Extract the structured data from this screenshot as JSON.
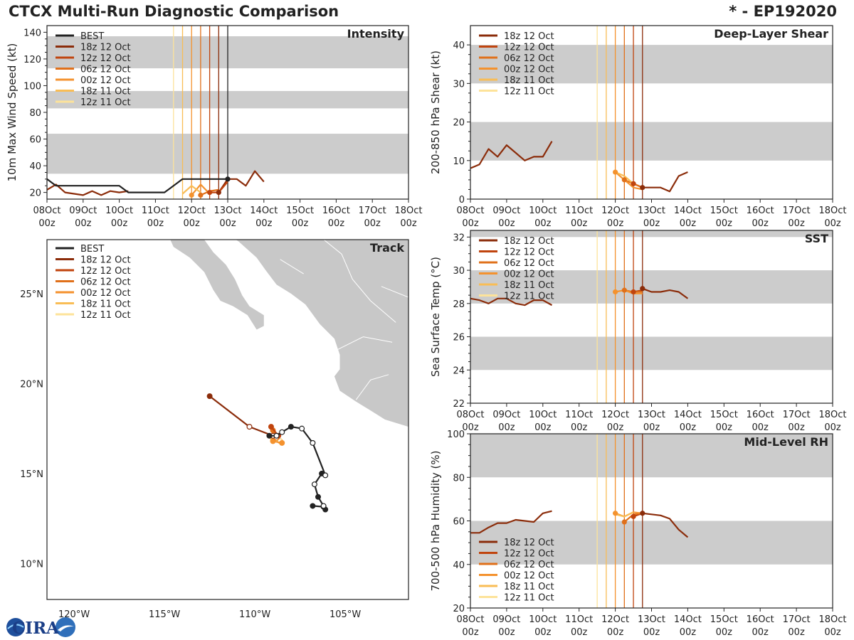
{
  "header": {
    "title": "CTCX Multi-Run Diagnostic Comparison",
    "storm": "* - EP192020"
  },
  "logo": {
    "text": "CIRA"
  },
  "colors": {
    "BEST": "#222222",
    "18z 12 Oct": "#8b2c0a",
    "12z 12 Oct": "#c0440e",
    "06z 12 Oct": "#e0701a",
    "00z 12 Oct": "#f4922e",
    "18z 11 Oct": "#f9bd55",
    "12z 11 Oct": "#fde39a",
    "band": "#cccccc",
    "land": "#c8c8c8"
  },
  "time_axis": {
    "ticks": [
      {
        "day": "08Oct",
        "hour": "00z"
      },
      {
        "day": "09Oct",
        "hour": "00z"
      },
      {
        "day": "10Oct",
        "hour": "00z"
      },
      {
        "day": "11Oct",
        "hour": "00z"
      },
      {
        "day": "12Oct",
        "hour": "00z"
      },
      {
        "day": "13Oct",
        "hour": "00z"
      },
      {
        "day": "14Oct",
        "hour": "00z"
      },
      {
        "day": "15Oct",
        "hour": "00z"
      },
      {
        "day": "16Oct",
        "hour": "00z"
      },
      {
        "day": "17Oct",
        "hour": "00z"
      },
      {
        "day": "18Oct",
        "hour": "00z"
      }
    ],
    "unit": "days since 08Oct 00z"
  },
  "chart_data": [
    {
      "id": "intensity",
      "type": "line",
      "title": "Intensity",
      "ylabel": "10m Max Wind Speed (kt)",
      "xlim": [
        0,
        10
      ],
      "ylim": [
        15,
        145
      ],
      "yticks": [
        20,
        40,
        60,
        80,
        100,
        120,
        140
      ],
      "bands": [
        [
          34,
          64
        ],
        [
          83,
          96
        ],
        [
          113,
          137
        ]
      ],
      "legend": [
        "BEST",
        "18z 12 Oct",
        "12z 12 Oct",
        "06z 12 Oct",
        "00z 12 Oct",
        "18z 11 Oct",
        "12z 11 Oct"
      ],
      "init_lines": [
        {
          "name": "12z 11 Oct",
          "x": 3.5
        },
        {
          "name": "18z 11 Oct",
          "x": 3.75
        },
        {
          "name": "00z 12 Oct",
          "x": 4.0
        },
        {
          "name": "06z 12 Oct",
          "x": 4.25
        },
        {
          "name": "12z 12 Oct",
          "x": 4.5
        },
        {
          "name": "18z 12 Oct",
          "x": 4.75
        },
        {
          "name": "BEST",
          "x": 5.0
        }
      ],
      "series": [
        {
          "name": "18z 12 Oct",
          "x": [
            0,
            0.25,
            0.5,
            0.75,
            1.0,
            1.25,
            1.5,
            1.75,
            2.0,
            2.25
          ],
          "values": [
            22,
            26,
            20,
            19,
            18,
            21,
            18,
            21,
            20,
            21
          ]
        },
        {
          "name": "18z 12 Oct",
          "x": [
            4.75,
            5.0,
            5.25,
            5.5,
            5.75,
            6.0
          ],
          "values": [
            20,
            30,
            30,
            25,
            36,
            28
          ]
        },
        {
          "name": "12z 12 Oct",
          "x": [
            4.5,
            4.75,
            5.0
          ],
          "values": [
            20,
            20,
            28
          ]
        },
        {
          "name": "06z 12 Oct",
          "x": [
            4.25,
            4.5,
            4.75
          ],
          "values": [
            18,
            21,
            22
          ]
        },
        {
          "name": "00z 12 Oct",
          "x": [
            4.0,
            4.25,
            4.5
          ],
          "values": [
            18,
            26,
            19
          ]
        },
        {
          "name": "18z 11 Oct",
          "x": [
            3.75,
            4.0,
            4.25
          ],
          "values": [
            19,
            25,
            20
          ]
        },
        {
          "name": "BEST",
          "x": [
            0,
            0.25,
            0.5,
            0.75,
            1.0,
            1.25,
            1.5,
            1.75,
            2.0,
            2.25,
            2.5,
            2.75,
            3.0,
            3.25,
            3.5,
            3.75,
            4.0,
            4.25,
            4.5,
            4.75,
            5.0
          ],
          "values": [
            30,
            25,
            25,
            25,
            25,
            25,
            25,
            25,
            25,
            20,
            20,
            20,
            20,
            20,
            25,
            30,
            30,
            30,
            30,
            30,
            30
          ]
        }
      ],
      "markers": [
        {
          "name": "BEST",
          "x": 5.0,
          "y": 30
        },
        {
          "name": "18z 12 Oct",
          "x": 4.75,
          "y": 20
        },
        {
          "name": "12z 12 Oct",
          "x": 4.5,
          "y": 20
        },
        {
          "name": "06z 12 Oct",
          "x": 4.25,
          "y": 18
        },
        {
          "name": "00z 12 Oct",
          "x": 4.0,
          "y": 18
        }
      ]
    },
    {
      "id": "shear",
      "type": "line",
      "title": "Deep-Layer Shear",
      "ylabel": "200-850 hPa Shear (kt)",
      "xlim": [
        0,
        10
      ],
      "ylim": [
        0,
        45
      ],
      "yticks": [
        0,
        10,
        20,
        30,
        40
      ],
      "bands": [
        [
          10,
          20
        ],
        [
          30,
          40
        ]
      ],
      "legend": [
        "18z 12 Oct",
        "12z 12 Oct",
        "06z 12 Oct",
        "00z 12 Oct",
        "18z 11 Oct",
        "12z 11 Oct"
      ],
      "init_lines": [
        {
          "name": "12z 11 Oct",
          "x": 3.5
        },
        {
          "name": "18z 11 Oct",
          "x": 3.75
        },
        {
          "name": "00z 12 Oct",
          "x": 4.0
        },
        {
          "name": "06z 12 Oct",
          "x": 4.25
        },
        {
          "name": "12z 12 Oct",
          "x": 4.5
        },
        {
          "name": "18z 12 Oct",
          "x": 4.75
        }
      ],
      "series": [
        {
          "name": "18z 12 Oct",
          "x": [
            0,
            0.25,
            0.5,
            0.75,
            1.0,
            1.25,
            1.5,
            1.75,
            2.0,
            2.25
          ],
          "values": [
            8,
            9,
            13,
            11,
            14,
            12,
            10,
            11,
            11,
            15
          ]
        },
        {
          "name": "18z 12 Oct",
          "x": [
            4.75,
            5.0,
            5.25,
            5.5,
            5.75,
            6.0
          ],
          "values": [
            3,
            3,
            3,
            2,
            6,
            7
          ]
        },
        {
          "name": "12z 12 Oct",
          "x": [
            4.5,
            4.75
          ],
          "values": [
            4,
            3
          ]
        },
        {
          "name": "06z 12 Oct",
          "x": [
            4.25,
            4.5,
            4.75
          ],
          "values": [
            5,
            4,
            3
          ]
        },
        {
          "name": "00z 12 Oct",
          "x": [
            4.0,
            4.25,
            4.5,
            4.75
          ],
          "values": [
            7,
            5,
            3,
            2.5
          ]
        },
        {
          "name": "18z 11 Oct",
          "x": [
            4.0,
            4.25,
            4.5
          ],
          "values": [
            7,
            6,
            4
          ]
        }
      ],
      "markers": [
        {
          "name": "18z 12 Oct",
          "x": 4.75,
          "y": 3
        },
        {
          "name": "12z 12 Oct",
          "x": 4.5,
          "y": 4
        },
        {
          "name": "06z 12 Oct",
          "x": 4.25,
          "y": 5
        },
        {
          "name": "00z 12 Oct",
          "x": 4.0,
          "y": 7
        }
      ]
    },
    {
      "id": "sst",
      "type": "line",
      "title": "SST",
      "ylabel": "Sea Surface Temp (°C)",
      "xlim": [
        0,
        10
      ],
      "ylim": [
        22,
        32.4
      ],
      "yticks": [
        22,
        24,
        26,
        28,
        30,
        32
      ],
      "bands": [
        [
          24,
          26
        ],
        [
          28,
          30
        ],
        [
          32,
          34
        ]
      ],
      "legend": [
        "18z 12 Oct",
        "12z 12 Oct",
        "06z 12 Oct",
        "00z 12 Oct",
        "18z 11 Oct",
        "12z 11 Oct"
      ],
      "init_lines": [
        {
          "name": "12z 11 Oct",
          "x": 3.5
        },
        {
          "name": "18z 11 Oct",
          "x": 3.75
        },
        {
          "name": "00z 12 Oct",
          "x": 4.0
        },
        {
          "name": "06z 12 Oct",
          "x": 4.25
        },
        {
          "name": "12z 12 Oct",
          "x": 4.5
        },
        {
          "name": "18z 12 Oct",
          "x": 4.75
        }
      ],
      "series": [
        {
          "name": "18z 12 Oct",
          "x": [
            0,
            0.25,
            0.5,
            0.75,
            1.0,
            1.25,
            1.5,
            1.75,
            2.0,
            2.25
          ],
          "values": [
            28.3,
            28.2,
            28.0,
            28.3,
            28.3,
            28.0,
            27.9,
            28.2,
            28.2,
            27.9
          ]
        },
        {
          "name": "18z 12 Oct",
          "x": [
            4.75,
            5.0,
            5.25,
            5.5,
            5.75,
            6.0
          ],
          "values": [
            28.9,
            28.7,
            28.7,
            28.8,
            28.7,
            28.3
          ]
        },
        {
          "name": "12z 12 Oct",
          "x": [
            4.5,
            4.75
          ],
          "values": [
            28.7,
            28.8
          ]
        },
        {
          "name": "06z 12 Oct",
          "x": [
            4.25,
            4.5,
            4.75
          ],
          "values": [
            28.8,
            28.7,
            28.7
          ]
        },
        {
          "name": "00z 12 Oct",
          "x": [
            4.0,
            4.25,
            4.5,
            4.75
          ],
          "values": [
            28.7,
            28.8,
            28.6,
            28.6
          ]
        }
      ],
      "markers": [
        {
          "name": "18z 12 Oct",
          "x": 4.75,
          "y": 28.9
        },
        {
          "name": "12z 12 Oct",
          "x": 4.5,
          "y": 28.7
        },
        {
          "name": "06z 12 Oct",
          "x": 4.25,
          "y": 28.8
        },
        {
          "name": "00z 12 Oct",
          "x": 4.0,
          "y": 28.7
        }
      ]
    },
    {
      "id": "rh",
      "type": "line",
      "title": "Mid-Level RH",
      "ylabel": "700-500 hPa Humidity (%)",
      "xlim": [
        0,
        10
      ],
      "ylim": [
        20,
        100
      ],
      "yticks": [
        20,
        40,
        60,
        80,
        100
      ],
      "bands": [
        [
          40,
          60
        ],
        [
          80,
          100
        ]
      ],
      "legend": [
        "18z 12 Oct",
        "12z 12 Oct",
        "06z 12 Oct",
        "00z 12 Oct",
        "18z 11 Oct",
        "12z 11 Oct"
      ],
      "init_lines": [
        {
          "name": "12z 11 Oct",
          "x": 3.5
        },
        {
          "name": "18z 11 Oct",
          "x": 3.75
        },
        {
          "name": "00z 12 Oct",
          "x": 4.0
        },
        {
          "name": "06z 12 Oct",
          "x": 4.25
        },
        {
          "name": "12z 12 Oct",
          "x": 4.5
        },
        {
          "name": "18z 12 Oct",
          "x": 4.75
        }
      ],
      "series": [
        {
          "name": "18z 12 Oct",
          "x": [
            0,
            0.25,
            0.5,
            0.75,
            1.0,
            1.25,
            1.5,
            1.75,
            2.0,
            2.25
          ],
          "values": [
            54.5,
            54.5,
            57,
            59,
            59,
            60.5,
            60,
            59.5,
            63.5,
            64.5
          ]
        },
        {
          "name": "18z 12 Oct",
          "x": [
            4.75,
            5.0,
            5.25,
            5.5,
            5.75,
            6.0
          ],
          "values": [
            63.5,
            63,
            62.5,
            61,
            56,
            52.5
          ]
        },
        {
          "name": "12z 12 Oct",
          "x": [
            4.5,
            4.75
          ],
          "values": [
            62,
            63.5
          ]
        },
        {
          "name": "06z 12 Oct",
          "x": [
            4.25,
            4.5,
            4.75
          ],
          "values": [
            59.5,
            63,
            63.5
          ]
        },
        {
          "name": "00z 12 Oct",
          "x": [
            4.0,
            4.25,
            4.5,
            4.75
          ],
          "values": [
            63.5,
            62,
            64,
            63.5
          ]
        },
        {
          "name": "18z 11 Oct",
          "x": [
            4.0,
            4.25,
            4.5
          ],
          "values": [
            63,
            62,
            64
          ]
        }
      ],
      "markers": [
        {
          "name": "18z 12 Oct",
          "x": 4.75,
          "y": 63.5
        },
        {
          "name": "12z 12 Oct",
          "x": 4.5,
          "y": 62
        },
        {
          "name": "06z 12 Oct",
          "x": 4.25,
          "y": 59.5
        },
        {
          "name": "00z 12 Oct",
          "x": 4.0,
          "y": 63.5
        }
      ]
    },
    {
      "id": "track",
      "type": "scatter",
      "title": "Track",
      "xlabel": "",
      "ylabel": "",
      "lon_range": [
        -121.5,
        -101.5
      ],
      "lat_range": [
        8,
        28
      ],
      "lon_ticks": [
        -120,
        -115,
        -110,
        -105
      ],
      "lon_labels": [
        "120°W",
        "115°W",
        "110°W",
        "105°W"
      ],
      "lat_ticks": [
        10,
        15,
        20,
        25
      ],
      "lat_labels": [
        "10°N",
        "15°N",
        "20°N",
        "25°N"
      ],
      "legend": [
        "BEST",
        "18z 12 Oct",
        "12z 12 Oct",
        "06z 12 Oct",
        "00z 12 Oct",
        "18z 11 Oct",
        "12z 11 Oct"
      ],
      "tracks": [
        {
          "name": "BEST",
          "lon": [
            -106.8,
            -106.2,
            -106.1,
            -106.2,
            -106.5,
            -106.7,
            -106.3,
            -106.1,
            -106.8,
            -107.4,
            -108.0,
            -108.5,
            -108.8,
            -109.2
          ],
          "lat": [
            13.2,
            13.15,
            13.0,
            13.2,
            13.7,
            14.4,
            15.0,
            14.9,
            16.7,
            17.5,
            17.6,
            17.3,
            17.1,
            17.1
          ],
          "filled": [
            true,
            false,
            true,
            false,
            true,
            false,
            true,
            false,
            false,
            false,
            true,
            false,
            false,
            true
          ]
        },
        {
          "name": "18z 12 Oct",
          "lon": [
            -112.5,
            -110.3,
            -109.0
          ],
          "lat": [
            19.3,
            17.6,
            17.1
          ],
          "filled": [
            true,
            false,
            false
          ]
        },
        {
          "name": "12z 12 Oct",
          "lon": [
            -109.1,
            -108.7
          ],
          "lat": [
            17.6,
            17.1
          ],
          "filled": [
            true,
            true
          ]
        },
        {
          "name": "06z 12 Oct",
          "lon": [
            -109.0,
            -108.8
          ],
          "lat": [
            17.4,
            17.0
          ],
          "filled": [
            true,
            false
          ]
        },
        {
          "name": "00z 12 Oct",
          "lon": [
            -109.0,
            -108.5
          ],
          "lat": [
            16.8,
            16.7
          ],
          "filled": [
            true,
            true
          ]
        },
        {
          "name": "18z 11 Oct",
          "lon": [
            -109.0,
            -108.6
          ],
          "lat": [
            16.9,
            16.8
          ],
          "filled": [
            true,
            false
          ]
        }
      ]
    }
  ]
}
